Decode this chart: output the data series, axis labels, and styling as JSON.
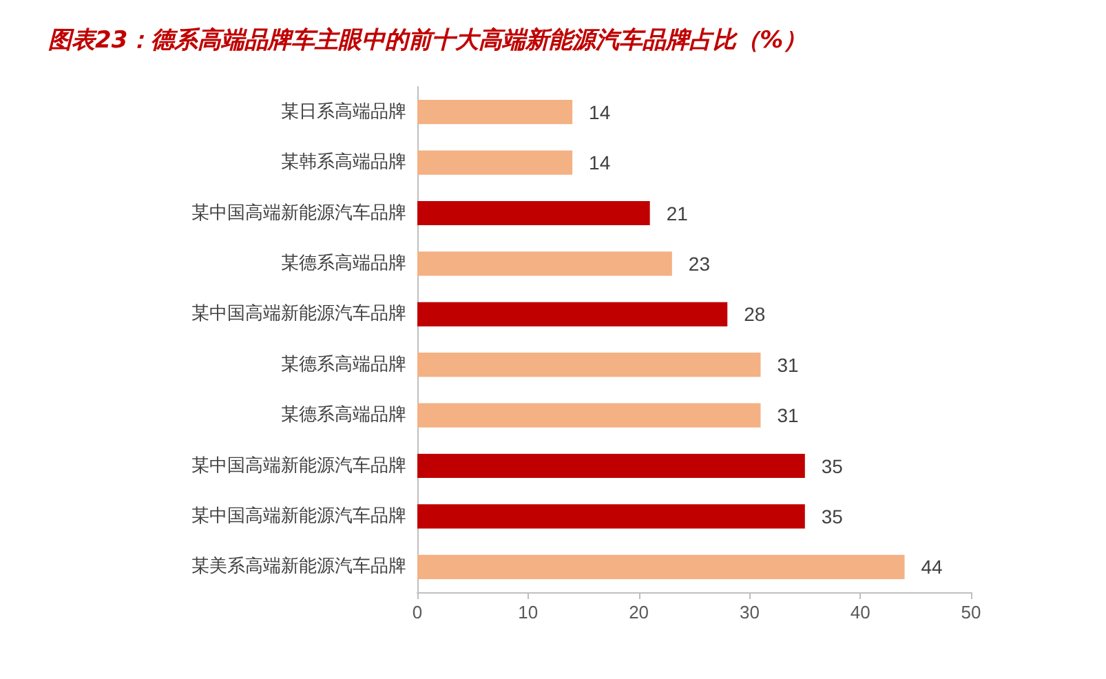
{
  "chart_data": {
    "type": "bar",
    "orientation": "horizontal",
    "title": "图表23：德系高端品牌车主眼中的前十大高端新能源汽车品牌占比（%）",
    "categories": [
      "某日系高端品牌",
      "某韩系高端品牌",
      "某中国高端新能源汽车品牌",
      "某德系高端品牌",
      "某中国高端新能源汽车品牌",
      "某德系高端品牌",
      "某德系高端品牌",
      "某中国高端新能源汽车品牌",
      "某中国高端新能源汽车品牌",
      "某美系高端新能源汽车品牌"
    ],
    "values": [
      14,
      14,
      21,
      23,
      28,
      31,
      31,
      35,
      35,
      44
    ],
    "colors": [
      "#f4b183",
      "#f4b183",
      "#c00000",
      "#f4b183",
      "#c00000",
      "#f4b183",
      "#f4b183",
      "#c00000",
      "#c00000",
      "#f4b183"
    ],
    "xlim": [
      0,
      50
    ],
    "xticks": [
      0,
      10,
      20,
      30,
      40,
      50
    ],
    "data_labels": true,
    "grid": false
  }
}
